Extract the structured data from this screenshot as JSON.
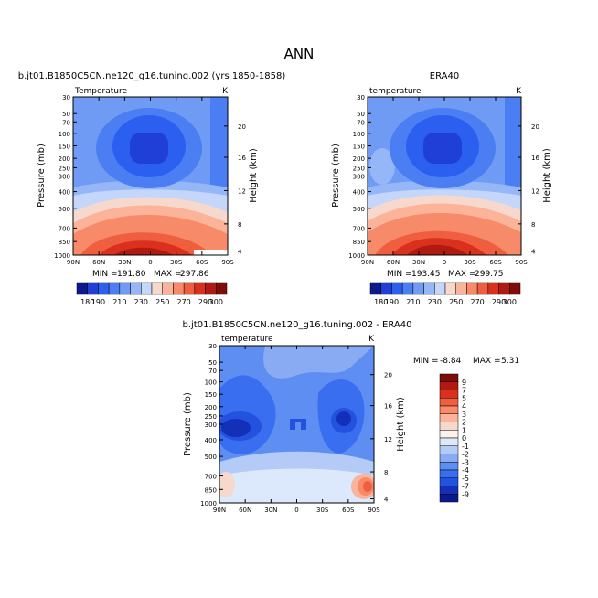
{
  "title": "ANN",
  "chart_data": [
    {
      "type": "heatmap",
      "title": "b.jt01.B1850C5CN.ne120_g16.tuning.002 (yrs 1850-1858)",
      "subtitle_left": "Temperature",
      "subtitle_right": "K",
      "xlabel": "",
      "ylabel": "Pressure (mb)",
      "ylabel_right": "Height (km)",
      "x_ticks": [
        "90N",
        "60N",
        "30N",
        "0",
        "30S",
        "60S",
        "90S"
      ],
      "y_ticks": [
        "30",
        "50",
        "70",
        "100",
        "150",
        "200",
        "250",
        "300",
        "400",
        "500",
        "700",
        "850",
        "1000"
      ],
      "y_ticks_right": [
        "20",
        "16",
        "12",
        "8",
        "4"
      ],
      "stats": {
        "min_label": "MIN =",
        "min": "191.80",
        "max_label": "MAX =",
        "max": "297.86"
      },
      "levels": [
        180,
        190,
        200,
        210,
        220,
        230,
        240,
        250,
        260,
        270,
        280,
        290,
        300
      ],
      "colorbar_labels": [
        "180",
        "190",
        "210",
        "230",
        "250",
        "270",
        "290",
        "300"
      ],
      "colors": [
        "#0a1a8c",
        "#1f3fd6",
        "#2b5ff0",
        "#4a7ef2",
        "#6f9bf5",
        "#95b6f7",
        "#c4d7fb",
        "#f6d8cc",
        "#fbb39a",
        "#f78a68",
        "#ef5e3e",
        "#d9311d",
        "#b01a10",
        "#7f0c08"
      ]
    },
    {
      "type": "heatmap",
      "title": "ERA40",
      "subtitle_left": "temperature",
      "subtitle_right": "K",
      "xlabel": "",
      "ylabel": "Pressure (mb)",
      "ylabel_right": "Height (km)",
      "x_ticks": [
        "90N",
        "60N",
        "30N",
        "0",
        "30S",
        "60S",
        "90S"
      ],
      "y_ticks": [
        "30",
        "50",
        "70",
        "100",
        "150",
        "200",
        "250",
        "300",
        "400",
        "500",
        "700",
        "850",
        "1000"
      ],
      "y_ticks_right": [
        "20",
        "16",
        "12",
        "8",
        "4"
      ],
      "stats": {
        "min_label": "MIN =",
        "min": "193.45",
        "max_label": "MAX =",
        "max": "299.75"
      },
      "levels": [
        180,
        190,
        200,
        210,
        220,
        230,
        240,
        250,
        260,
        270,
        280,
        290,
        300
      ],
      "colorbar_labels": [
        "180",
        "190",
        "210",
        "230",
        "250",
        "270",
        "290",
        "300"
      ],
      "colors": [
        "#0a1a8c",
        "#1f3fd6",
        "#2b5ff0",
        "#4a7ef2",
        "#6f9bf5",
        "#95b6f7",
        "#c4d7fb",
        "#f6d8cc",
        "#fbb39a",
        "#f78a68",
        "#ef5e3e",
        "#d9311d",
        "#b01a10",
        "#7f0c08"
      ]
    },
    {
      "type": "heatmap",
      "title": "b.jt01.B1850C5CN.ne120_g16.tuning.002 - ERA40",
      "subtitle_left": "temperature",
      "subtitle_right": "K",
      "xlabel": "",
      "ylabel": "Pressure (mb)",
      "ylabel_right": "Height (km)",
      "x_ticks": [
        "90N",
        "60N",
        "30N",
        "0",
        "30S",
        "60S",
        "90S"
      ],
      "y_ticks": [
        "30",
        "50",
        "70",
        "100",
        "150",
        "200",
        "250",
        "300",
        "400",
        "500",
        "700",
        "850",
        "1000"
      ],
      "y_ticks_right": [
        "20",
        "16",
        "12",
        "8",
        "4"
      ],
      "stats": {
        "min_label": "MIN =",
        "min": "-8.84",
        "max_label": "MAX =",
        "max": "5.31"
      },
      "levels": [
        -9,
        -7,
        -5,
        -4,
        -3,
        -2,
        -1,
        0,
        1,
        2,
        3,
        4,
        5,
        7,
        9
      ],
      "colorbar_labels": [
        "9",
        "7",
        "5",
        "4",
        "3",
        "2",
        "1",
        "0",
        "-1",
        "-2",
        "-3",
        "-4",
        "-5",
        "-7",
        "-9"
      ],
      "colors": [
        "#7f0c08",
        "#b01a10",
        "#d9311d",
        "#ef5e3e",
        "#f78a68",
        "#fbb39a",
        "#f6d8cc",
        "#fdf1ec",
        "#dce8fc",
        "#b4cbf8",
        "#89abf4",
        "#5f8ef2",
        "#3a6ef0",
        "#2252de",
        "#1330b8",
        "#0a1a8c"
      ]
    }
  ]
}
